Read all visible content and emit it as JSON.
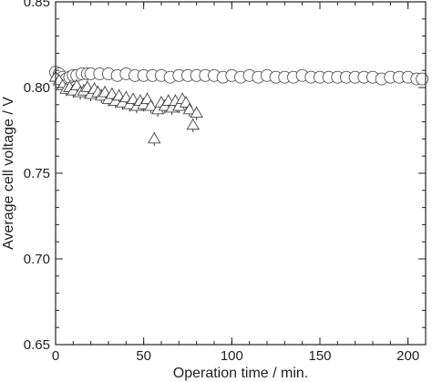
{
  "chart_data": {
    "type": "scatter",
    "title": "",
    "xlabel": "Operation time / min.",
    "ylabel": "Average cell voltage / V",
    "xlim": [
      0,
      210
    ],
    "ylim": [
      0.65,
      0.85
    ],
    "x_major_ticks": [
      0,
      50,
      100,
      150,
      200
    ],
    "x_tick_labels": [
      "0",
      "50",
      "100",
      "150",
      "200"
    ],
    "x_minor_step": 10,
    "y_major_ticks": [
      0.65,
      0.7,
      0.75,
      0.8,
      0.85
    ],
    "y_tick_labels": [
      "0.65",
      "0.70",
      "0.75",
      "0.80",
      "0.85"
    ],
    "y_minor_step": 0.01,
    "grid": false,
    "legend": "none",
    "series": [
      {
        "marker": "circle",
        "x": [
          0,
          2,
          4,
          6,
          8,
          10,
          12,
          15,
          18,
          20,
          25,
          30,
          35,
          40,
          45,
          50,
          55,
          60,
          65,
          70,
          75,
          80,
          85,
          90,
          95,
          100,
          105,
          110,
          115,
          120,
          125,
          130,
          135,
          140,
          145,
          150,
          155,
          160,
          165,
          170,
          175,
          180,
          185,
          190,
          195,
          200,
          205,
          208
        ],
        "y": [
          0.809,
          0.808,
          0.806,
          0.805,
          0.806,
          0.807,
          0.807,
          0.808,
          0.808,
          0.808,
          0.808,
          0.808,
          0.807,
          0.808,
          0.807,
          0.807,
          0.807,
          0.807,
          0.806,
          0.807,
          0.807,
          0.807,
          0.807,
          0.807,
          0.806,
          0.807,
          0.806,
          0.807,
          0.806,
          0.807,
          0.806,
          0.806,
          0.806,
          0.807,
          0.806,
          0.806,
          0.806,
          0.806,
          0.806,
          0.806,
          0.806,
          0.806,
          0.805,
          0.806,
          0.806,
          0.806,
          0.805,
          0.805
        ],
        "yerr": 0.003
      },
      {
        "marker": "triangle",
        "x": [
          0,
          2,
          4,
          6,
          8,
          10,
          12,
          14,
          16,
          18,
          20,
          22,
          24,
          26,
          28,
          30,
          32,
          34,
          36,
          38,
          40,
          42,
          44,
          46,
          48,
          50,
          52,
          54,
          56,
          58,
          60,
          62,
          64,
          66,
          68,
          70,
          72,
          74,
          76,
          78,
          80
        ],
        "y": [
          0.806,
          0.804,
          0.801,
          0.799,
          0.8,
          0.798,
          0.801,
          0.797,
          0.798,
          0.8,
          0.796,
          0.799,
          0.797,
          0.795,
          0.797,
          0.793,
          0.796,
          0.792,
          0.795,
          0.791,
          0.794,
          0.79,
          0.793,
          0.789,
          0.792,
          0.79,
          0.793,
          0.789,
          0.77,
          0.787,
          0.791,
          0.789,
          0.792,
          0.788,
          0.792,
          0.789,
          0.793,
          0.791,
          0.787,
          0.778,
          0.785
        ],
        "yerr": 0.004
      }
    ]
  }
}
